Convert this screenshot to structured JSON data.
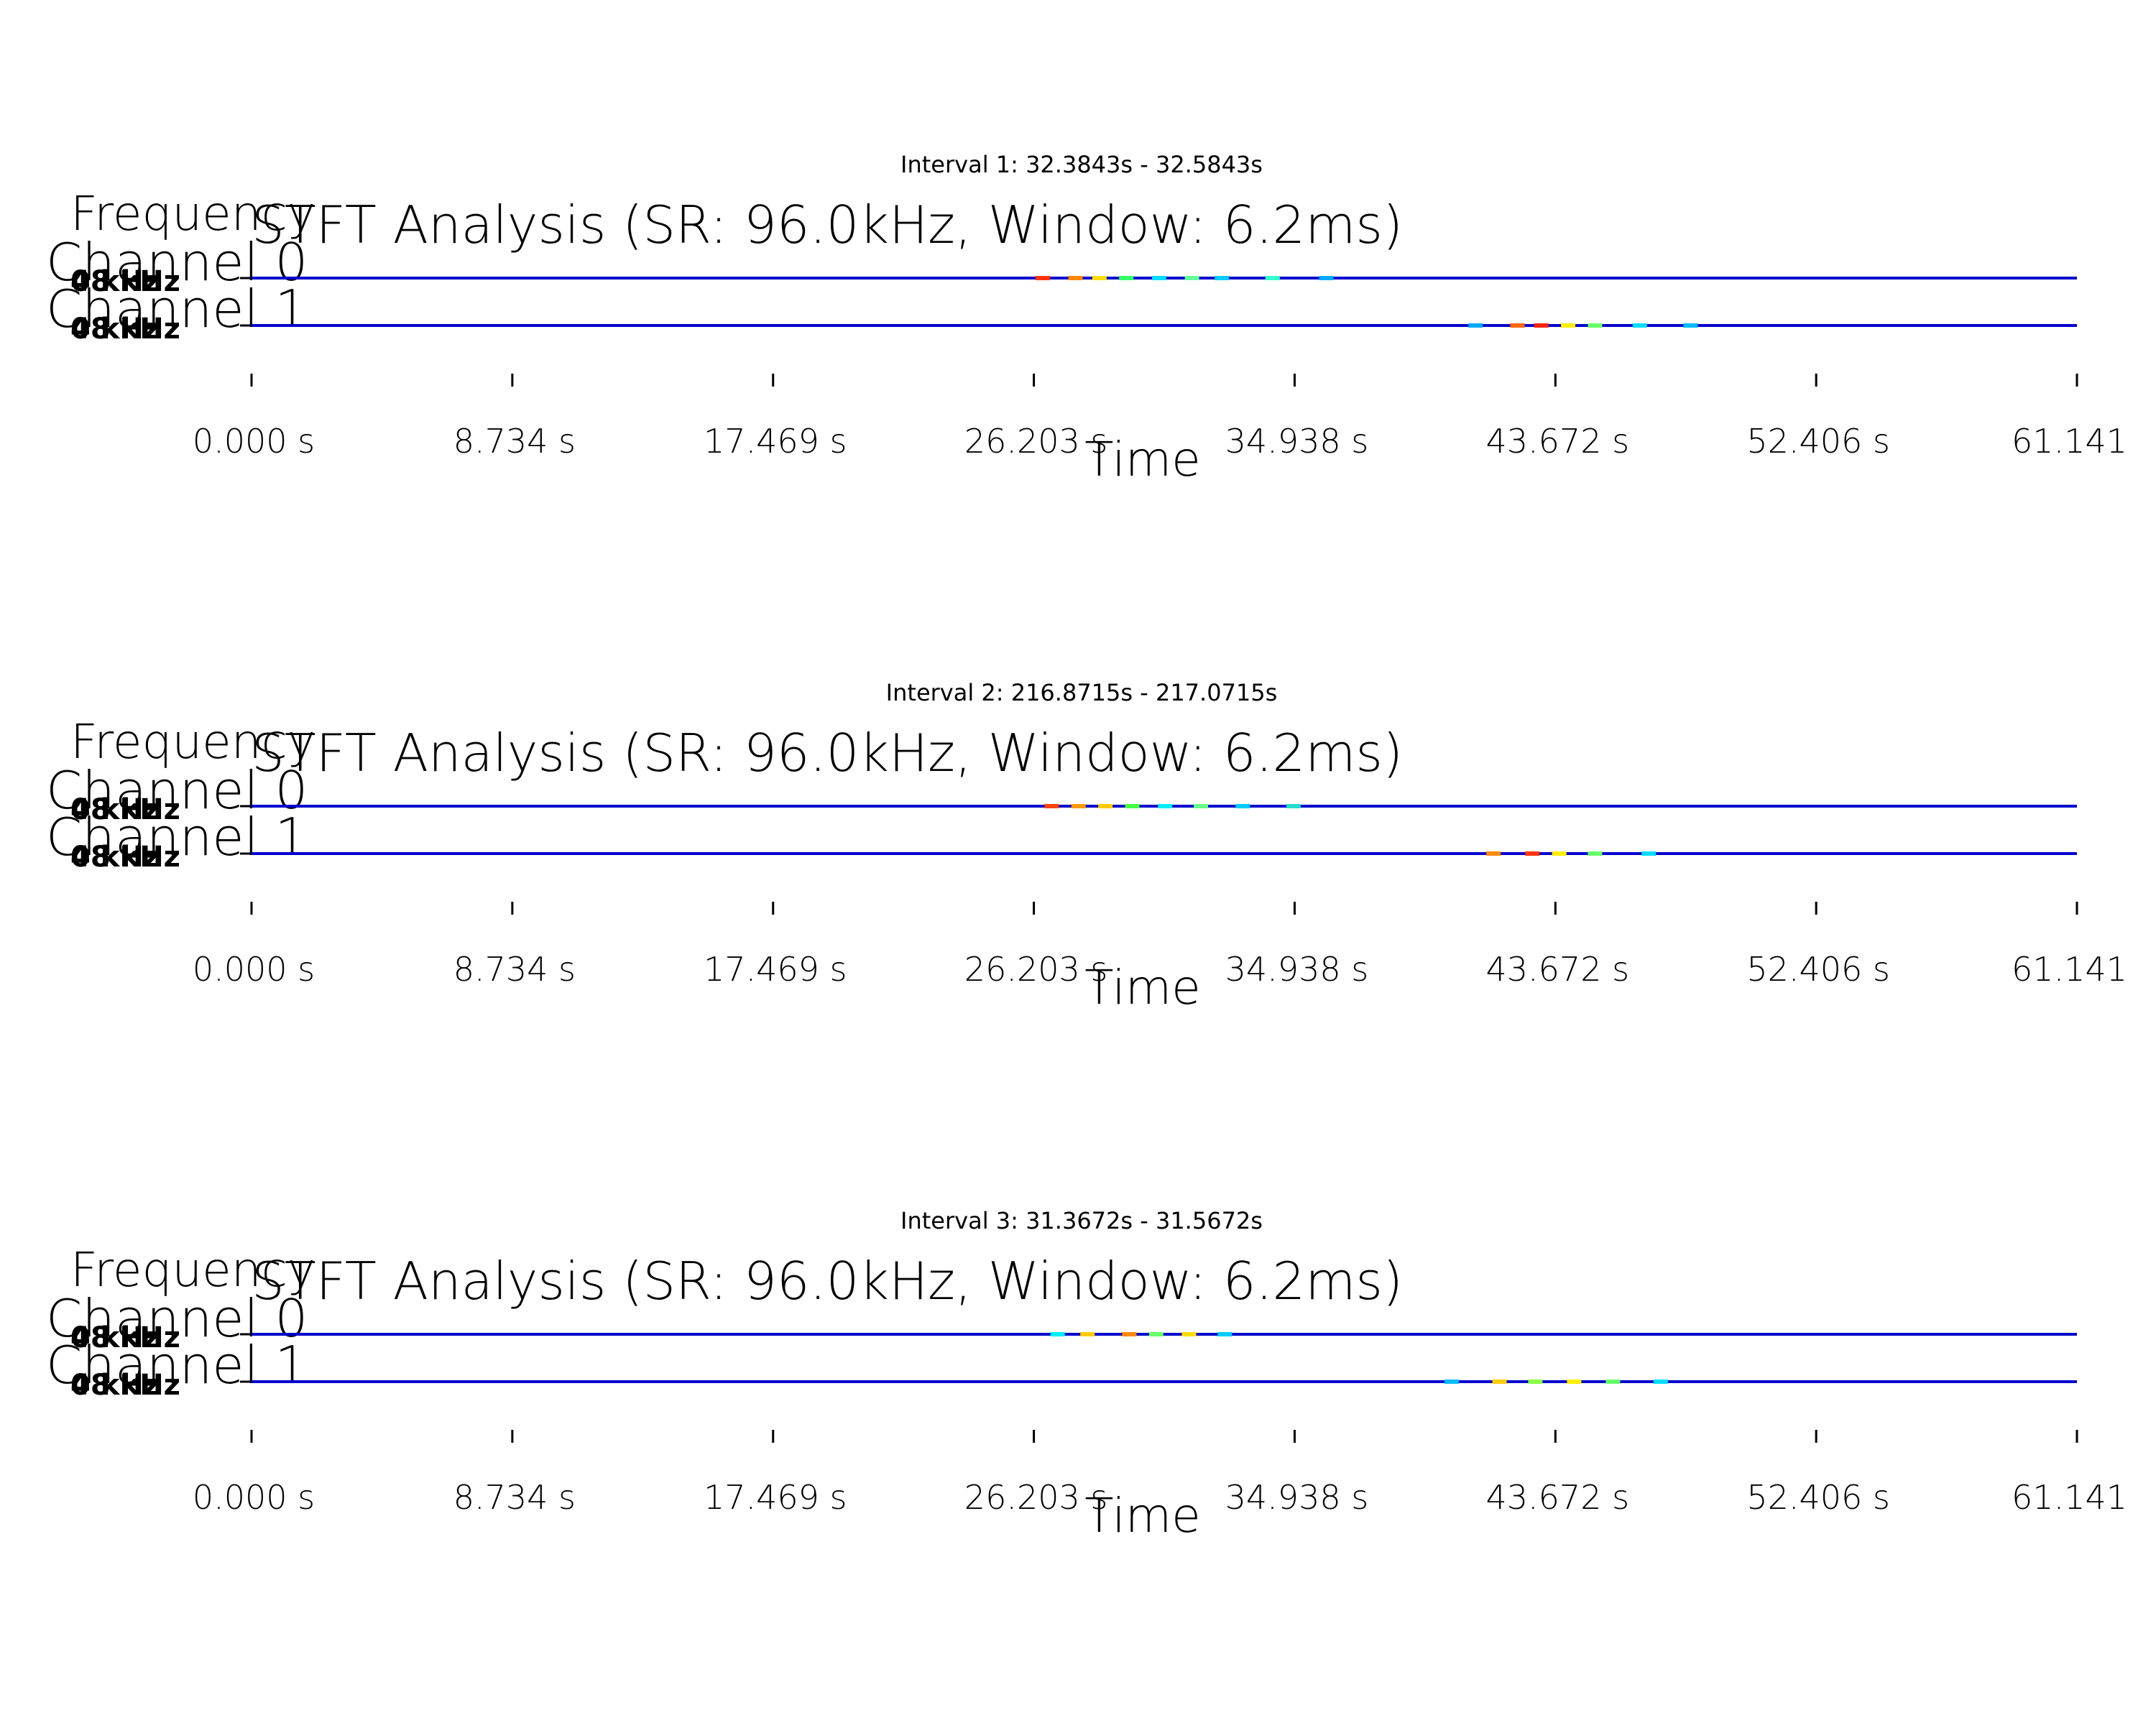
{
  "chart_data": [
    {
      "type": "heatmap",
      "interval_title": "Interval 1: 32.3843s - 32.5843s",
      "title": "STFT Analysis (SR: 96.0kHz, Window: 6.2ms)",
      "xlabel": "Time",
      "ylabel": "Frequency",
      "x_ticks": [
        "0.000 s",
        "8.734 s",
        "17.469 s",
        "26.203 s",
        "34.938 s",
        "43.672 s",
        "52.406 s",
        "61.141"
      ],
      "xlim": [
        0,
        61.141
      ],
      "channels": [
        {
          "name": "Channel 0",
          "freq_labels": [
            "0 kHz",
            "48 kHz"
          ],
          "activity": [
            {
              "t": 26.5,
              "color": "#ff3300"
            },
            {
              "t": 27.6,
              "color": "#ff8800"
            },
            {
              "t": 28.4,
              "color": "#ffdd00"
            },
            {
              "t": 29.3,
              "color": "#33ff66"
            },
            {
              "t": 30.4,
              "color": "#00ddff"
            },
            {
              "t": 31.5,
              "color": "#66ff99"
            },
            {
              "t": 32.5,
              "color": "#00ccff"
            },
            {
              "t": 34.2,
              "color": "#33ffcc"
            },
            {
              "t": 36.0,
              "color": "#00aaff"
            }
          ]
        },
        {
          "name": "Channel 1",
          "freq_labels": [
            "0 kHz",
            "48 kHz"
          ],
          "activity": [
            {
              "t": 41.0,
              "color": "#00aaff"
            },
            {
              "t": 42.4,
              "color": "#ff6600"
            },
            {
              "t": 43.2,
              "color": "#ff2200"
            },
            {
              "t": 44.1,
              "color": "#ffee00"
            },
            {
              "t": 45.0,
              "color": "#66ff66"
            },
            {
              "t": 46.5,
              "color": "#00ddff"
            },
            {
              "t": 48.2,
              "color": "#00bbff"
            }
          ]
        }
      ]
    },
    {
      "type": "heatmap",
      "interval_title": "Interval 2: 216.8715s - 217.0715s",
      "title": "STFT Analysis (SR: 96.0kHz, Window: 6.2ms)",
      "xlabel": "Time",
      "ylabel": "Frequency",
      "x_ticks": [
        "0.000 s",
        "8.734 s",
        "17.469 s",
        "26.203 s",
        "34.938 s",
        "43.672 s",
        "52.406 s",
        "61.141"
      ],
      "xlim": [
        0,
        61.141
      ],
      "channels": [
        {
          "name": "Channel 0",
          "freq_labels": [
            "0 kHz",
            "48 kHz"
          ],
          "activity": [
            {
              "t": 26.8,
              "color": "#ff4400"
            },
            {
              "t": 27.7,
              "color": "#ff9900"
            },
            {
              "t": 28.6,
              "color": "#ffcc00"
            },
            {
              "t": 29.5,
              "color": "#44ff44"
            },
            {
              "t": 30.6,
              "color": "#00eeff"
            },
            {
              "t": 31.8,
              "color": "#66ff88"
            },
            {
              "t": 33.2,
              "color": "#00ccff"
            },
            {
              "t": 34.9,
              "color": "#22ddcc"
            }
          ]
        },
        {
          "name": "Channel 1",
          "freq_labels": [
            "0 kHz",
            "48 kHz"
          ],
          "activity": [
            {
              "t": 41.6,
              "color": "#ff8800"
            },
            {
              "t": 42.9,
              "color": "#ff3300"
            },
            {
              "t": 43.8,
              "color": "#ffee00"
            },
            {
              "t": 45.0,
              "color": "#66ff66"
            },
            {
              "t": 46.8,
              "color": "#00ddff"
            }
          ]
        }
      ]
    },
    {
      "type": "heatmap",
      "interval_title": "Interval 3: 31.3672s - 31.5672s",
      "title": "STFT Analysis (SR: 96.0kHz, Window: 6.2ms)",
      "xlabel": "Time",
      "ylabel": "Frequency",
      "x_ticks": [
        "0.000 s",
        "8.734 s",
        "17.469 s",
        "26.203 s",
        "34.938 s",
        "43.672 s",
        "52.406 s",
        "61.141"
      ],
      "xlim": [
        0,
        61.141
      ],
      "channels": [
        {
          "name": "Channel 0",
          "freq_labels": [
            "0 kHz",
            "48 kHz"
          ],
          "activity": [
            {
              "t": 27.0,
              "color": "#00eeff"
            },
            {
              "t": 28.0,
              "color": "#ffcc00"
            },
            {
              "t": 29.4,
              "color": "#ff8800"
            },
            {
              "t": 30.3,
              "color": "#66ff66"
            },
            {
              "t": 31.4,
              "color": "#ffdd00"
            },
            {
              "t": 32.6,
              "color": "#00ccff"
            }
          ]
        },
        {
          "name": "Channel 1",
          "freq_labels": [
            "0 kHz",
            "48 kHz"
          ],
          "activity": [
            {
              "t": 40.2,
              "color": "#00bbff"
            },
            {
              "t": 41.8,
              "color": "#ffcc00"
            },
            {
              "t": 43.0,
              "color": "#88ff44"
            },
            {
              "t": 44.3,
              "color": "#ffee00"
            },
            {
              "t": 45.6,
              "color": "#66ff66"
            },
            {
              "t": 47.2,
              "color": "#00ddff"
            }
          ]
        }
      ]
    }
  ]
}
